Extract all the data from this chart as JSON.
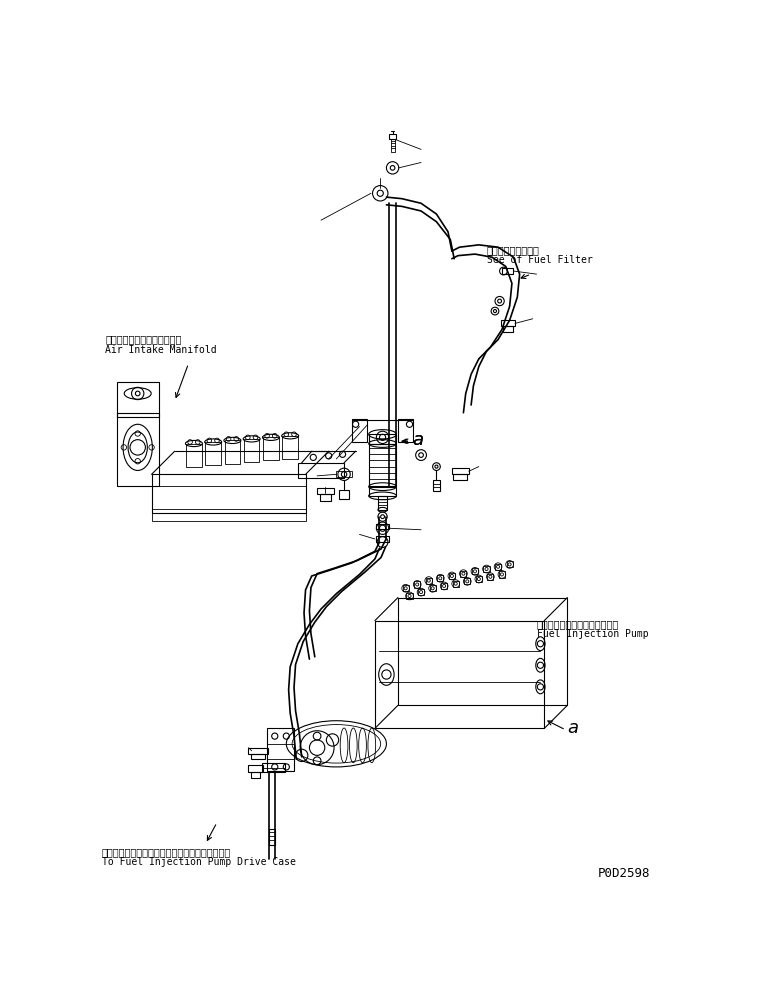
{
  "bg_color": "#ffffff",
  "line_color": "#000000",
  "fig_width": 7.66,
  "fig_height": 10.01,
  "labels": {
    "air_intake_jp": "エアーインテークマニホルド",
    "air_intake_en": "Air Intake Manifold",
    "fuel_filter_jp": "フェルフィルタ参照",
    "fuel_filter_en": "See of Fuel Filter",
    "fuel_pump_jp": "フェルインジェクションポンプ",
    "fuel_pump_en": "Fuel Injection Pump",
    "drive_case_jp": "フェルインジェクションポンプドライブケースヘ",
    "drive_case_en": "To Fuel Injection Pump Drive Case",
    "part_num": "P0D2598",
    "label_a": "a"
  },
  "font_sizes": {
    "jp": 7,
    "en": 7,
    "part_num": 9,
    "label_a": 13
  }
}
